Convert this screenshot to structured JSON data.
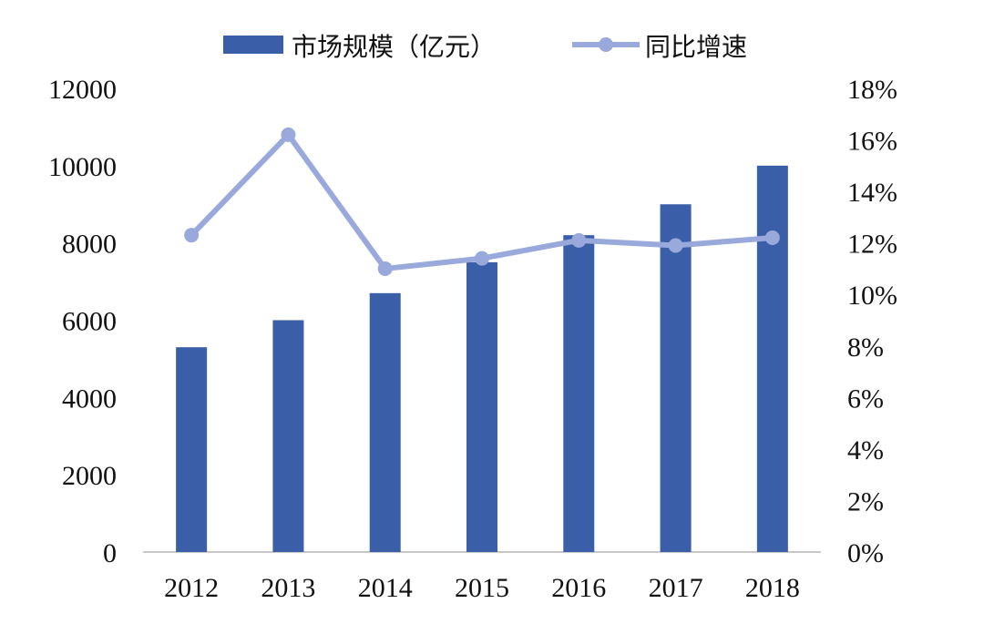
{
  "chart_data": {
    "type": "bar+line",
    "categories": [
      "2012",
      "2013",
      "2014",
      "2015",
      "2016",
      "2017",
      "2018"
    ],
    "series": [
      {
        "name": "市场规模（亿元）",
        "type": "bar",
        "axis": "left",
        "color": "#3b5ea8",
        "values": [
          5300,
          6000,
          6700,
          7500,
          8200,
          9000,
          10000
        ]
      },
      {
        "name": "同比增速",
        "type": "line",
        "axis": "right",
        "color": "#9aa9dc",
        "values": [
          0.123,
          0.162,
          0.11,
          0.114,
          0.121,
          0.119,
          0.122
        ]
      }
    ],
    "y_left": {
      "lim": [
        0,
        12000
      ],
      "ticks": [
        0,
        2000,
        4000,
        6000,
        8000,
        10000,
        12000
      ],
      "tick_labels": [
        "0",
        "2000",
        "4000",
        "6000",
        "8000",
        "10000",
        "12000"
      ]
    },
    "y_right": {
      "lim": [
        0,
        0.18
      ],
      "ticks": [
        0,
        0.02,
        0.04,
        0.06,
        0.08,
        0.1,
        0.12,
        0.14,
        0.16,
        0.18
      ],
      "tick_labels": [
        "0%",
        "2%",
        "4%",
        "6%",
        "8%",
        "10%",
        "12%",
        "14%",
        "16%",
        "18%"
      ]
    },
    "title": "",
    "xlabel": "",
    "ylabel": "",
    "grid": false,
    "legend_position": "top-center"
  }
}
